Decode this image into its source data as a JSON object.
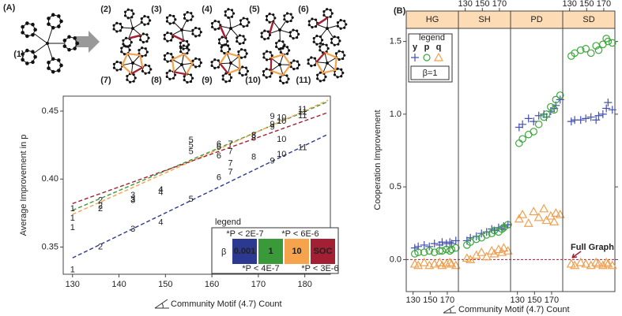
{
  "panel_a": {
    "label": "(A)",
    "graph_labels": [
      "(1)",
      "(2)",
      "(3)",
      "(4)",
      "(5)",
      "(6)",
      "(7)",
      "(8)",
      "(9)",
      "(10)",
      "(11)"
    ]
  },
  "chart_data": [
    {
      "type": "scatter",
      "ylabel": "Average Improvement in p",
      "xlabel": "Community Motif (4.7) Count",
      "xlim": [
        128,
        185.5
      ],
      "ylim": [
        0.33,
        0.461
      ],
      "xticks": [
        130,
        140,
        150,
        160,
        170,
        180
      ],
      "yticks": [
        0.35,
        {
          "value": 0.4,
          "label": "0.40"
        },
        0.45
      ],
      "point_labels": [
        "1",
        "2",
        "3",
        "4",
        "5",
        "6",
        "7",
        "8",
        "9",
        "10",
        "11"
      ],
      "legend_title": "legend",
      "legend_symbol": "β",
      "series": [
        {
          "name": "0.001",
          "color": "#2b3990",
          "p_label": "*P < 2E-7",
          "x": [
            130,
            136,
            143,
            149,
            155.5,
            161.5,
            164,
            169,
            173,
            175,
            179.5
          ],
          "values": [
            0.333,
            0.35,
            0.363,
            0.368,
            0.385,
            0.401,
            0.405,
            0.416,
            0.413,
            0.418,
            0.423
          ],
          "fit_x": [
            130,
            185
          ],
          "fit_y": [
            0.342,
            0.433
          ]
        },
        {
          "name": "1",
          "color": "#3a9a3a",
          "p_label": "*P < 4E-7",
          "x": [
            130,
            136,
            143,
            149,
            155.5,
            161.5,
            164,
            169,
            173,
            175,
            179.5
          ],
          "values": [
            0.371,
            0.38,
            0.385,
            0.392,
            0.42,
            0.4234,
            0.4113,
            0.432,
            0.446,
            0.4425,
            0.451
          ],
          "fit_x": [
            130,
            185
          ],
          "fit_y": [
            0.377,
            0.457
          ]
        },
        {
          "name": "10",
          "color": "#f5a34d",
          "p_label": "*P < 6E-6",
          "x": [
            130,
            136,
            143,
            149,
            155.5,
            161.5,
            164,
            169,
            173,
            175,
            179.5
          ],
          "values": [
            0.364,
            0.378,
            0.384,
            0.39,
            0.4286,
            0.417,
            0.42,
            0.43,
            0.44,
            0.445,
            0.449
          ],
          "fit_x": [
            130,
            185
          ],
          "fit_y": [
            0.374,
            0.458
          ]
        },
        {
          "name": "SOC",
          "color": "#a31f34",
          "p_label": "*P < 3E-6",
          "x": [
            130,
            136,
            143,
            149,
            155.5,
            161.5,
            164,
            169,
            173,
            175,
            179.5
          ],
          "values": [
            0.378,
            0.384,
            0.388,
            0.392,
            0.4246,
            0.4257,
            0.4257,
            0.432,
            0.438,
            0.429,
            0.4465
          ],
          "fit_x": [
            130,
            185
          ],
          "fit_y": [
            0.382,
            0.449
          ]
        }
      ]
    },
    {
      "type": "lattice",
      "label": "(B)",
      "ylabel": "Cooperation Improvement",
      "xlabel": "Community Motif (4.7) Count",
      "xlim": [
        122,
        183
      ],
      "ylim": [
        -0.22,
        1.59
      ],
      "xticks": [
        130,
        150,
        170
      ],
      "yticks": [
        {
          "value": 0,
          "label": "0.0"
        },
        0.5,
        {
          "value": 1,
          "label": "1.0"
        },
        1.5
      ],
      "legend_title": "legend",
      "legend_note": "β=1",
      "annotation": "Full Graph",
      "reference_line": {
        "value": 0,
        "color": "#a31f34"
      },
      "x": [
        132,
        136,
        143,
        149,
        155,
        161,
        164,
        169,
        173,
        175,
        180
      ],
      "series": [
        {
          "name": "y",
          "color": "#4450b0",
          "marker": "plus"
        },
        {
          "name": "p",
          "color": "#3aa83a",
          "marker": "circle"
        },
        {
          "name": "q",
          "color": "#f0a050",
          "marker": "triangle"
        }
      ],
      "panels": [
        {
          "name": "HG",
          "values": [
            [
              0.08,
              0.09,
              0.1,
              0.09,
              0.11,
              0.1,
              0.12,
              0.11,
              0.12,
              0.11,
              0.13
            ],
            [
              0.04,
              0.05,
              0.05,
              0.06,
              0.05,
              0.06,
              0.06,
              0.07,
              0.06,
              0.07,
              0.08
            ],
            [
              -0.03,
              -0.04,
              -0.02,
              -0.04,
              -0.03,
              -0.02,
              -0.04,
              -0.03,
              -0.02,
              -0.03,
              -0.04
            ]
          ]
        },
        {
          "name": "SH",
          "values": [
            [
              0.13,
              0.15,
              0.16,
              0.18,
              0.19,
              0.21,
              0.2,
              0.22,
              0.21,
              0.23,
              0.24
            ],
            [
              0.1,
              0.12,
              0.14,
              0.15,
              0.17,
              0.18,
              0.2,
              0.19,
              0.21,
              0.22,
              0.24
            ],
            [
              0.01,
              0,
              0.03,
              0.05,
              0.02,
              0.06,
              0.04,
              0.07,
              0.05,
              0.08,
              0.06
            ]
          ]
        },
        {
          "name": "PD",
          "values": [
            [
              0.91,
              0.93,
              0.97,
              0.95,
              0.99,
              1,
              0.98,
              1.02,
              1.04,
              1.06,
              1.1
            ],
            [
              0.8,
              0.83,
              0.86,
              0.88,
              0.93,
              0.98,
              1,
              1.05,
              1.03,
              1.1,
              1.13
            ],
            [
              0.28,
              0.31,
              0.25,
              0.33,
              0.29,
              0.35,
              0.27,
              0.3,
              0.26,
              0.32,
              0.31
            ]
          ]
        },
        {
          "name": "SD",
          "values": [
            [
              0.95,
              0.96,
              0.96,
              0.97,
              0.98,
              0.96,
              0.99,
              1,
              1.04,
              1.08,
              1.03
            ],
            [
              1.4,
              1.42,
              1.44,
              1.45,
              1.42,
              1.47,
              1.44,
              1.48,
              1.52,
              1.5,
              1.49
            ],
            [
              -0.03,
              -0.04,
              -0.02,
              -0.03,
              -0.04,
              -0.02,
              -0.03,
              -0.04,
              -0.02,
              -0.03,
              -0.04
            ]
          ]
        }
      ]
    }
  ]
}
